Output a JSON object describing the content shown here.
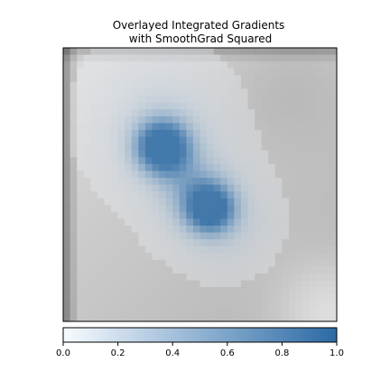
{
  "chart_data": {
    "type": "heatmap",
    "title_lines": [
      "Overlayed Integrated Gradients",
      "with SmoothGrad Squared"
    ],
    "grid_size": 40,
    "colorbar": {
      "ticks": [
        "0.0",
        "0.2",
        "0.4",
        "0.6",
        "0.8",
        "1.0"
      ],
      "vmin": 0.0,
      "vmax": 1.0,
      "cmap": "Blues"
    },
    "attribution_blobs": [
      {
        "cx": 14,
        "cy": 14,
        "r": 3.0,
        "v": 1.0
      },
      {
        "cx": 21,
        "cy": 23,
        "r": 2.6,
        "v": 0.75
      },
      {
        "cx": 19,
        "cy": 21,
        "r": 4.2,
        "v": 0.4
      },
      {
        "cx": 15,
        "cy": 13,
        "r": 6.0,
        "v": 0.2
      },
      {
        "cx": 23,
        "cy": 25,
        "r": 4.5,
        "v": 0.25
      },
      {
        "cx": 12,
        "cy": 8,
        "r": 7.0,
        "v": 0.1
      }
    ],
    "colors": {
      "cmap_low": "#f7fbff",
      "cmap_high": "#2b6aa5",
      "image_light": "#f5f5f5",
      "image_dark": "#6e6e6e"
    }
  }
}
